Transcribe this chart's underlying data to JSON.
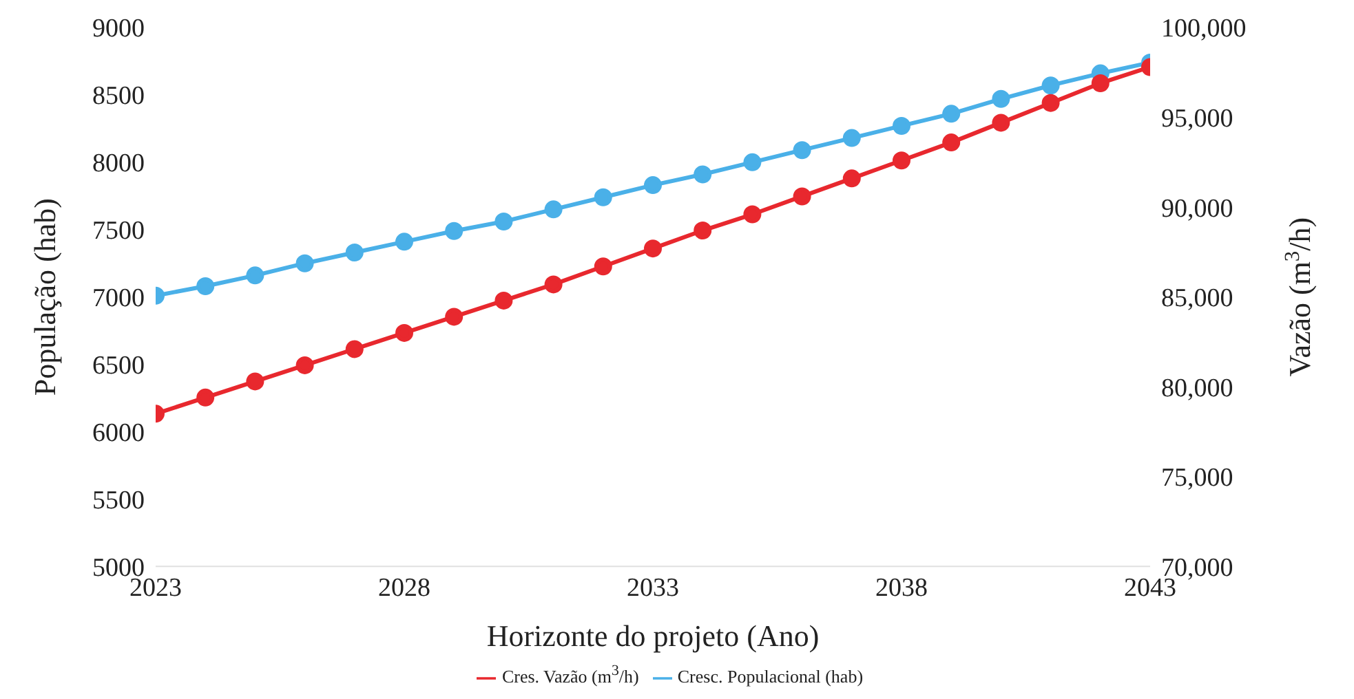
{
  "chart_data": {
    "type": "line",
    "xlabel": "Horizonte do projeto (Ano)",
    "ylabel": "População (hab)",
    "y2label": "Vazão (m$^{3}$/h)",
    "x": [
      2023,
      2024,
      2025,
      2026,
      2027,
      2028,
      2029,
      2030,
      2031,
      2032,
      2033,
      2034,
      2035,
      2036,
      2037,
      2038,
      2039,
      2040,
      2041,
      2042,
      2043
    ],
    "series": [
      {
        "name": "Cresc. Populacional (hab)",
        "color": "#4ab0e8",
        "values": [
          7010,
          7080,
          7160,
          7250,
          7330,
          7410,
          7490,
          7560,
          7650,
          7740,
          7830,
          7910,
          8000,
          8090,
          8180,
          8270,
          8360,
          8470,
          8570,
          8660,
          8740
        ]
      },
      {
        "name": "Cres. Vazão (m$^{3}$/h)",
        "color": "#e8282e",
        "axis": "y2",
        "values": [
          78500,
          79400,
          80300,
          81200,
          82100,
          83000,
          83900,
          84800,
          85700,
          86700,
          87700,
          88700,
          89600,
          90600,
          91600,
          92600,
          93600,
          94700,
          95800,
          96900,
          97800
        ]
      }
    ],
    "xlim": [
      2023,
      2043
    ],
    "xticks": [
      2023,
      2028,
      2033,
      2038,
      2043
    ],
    "ylim": [
      5000,
      9000
    ],
    "yticks": [
      5000,
      5500,
      6000,
      6500,
      7000,
      7500,
      8000,
      8500,
      9000
    ],
    "y2lim": [
      70000,
      100000
    ],
    "y2ticks": [
      {
        "value": 70000,
        "label": "70,000"
      },
      {
        "value": 75000,
        "label": "75,000"
      },
      {
        "value": 80000,
        "label": "80,000"
      },
      {
        "value": 85000,
        "label": "85,000"
      },
      {
        "value": 90000,
        "label": "90,000"
      },
      {
        "value": 95000,
        "label": "95,000"
      },
      {
        "value": 100000,
        "label": "100,000"
      }
    ],
    "grid": false,
    "legend": "bottom",
    "marker": "circle",
    "line_style": "solid"
  }
}
